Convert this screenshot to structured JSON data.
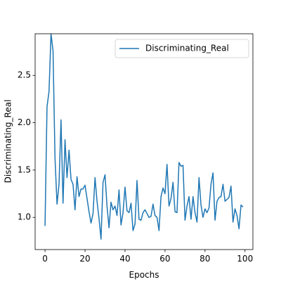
{
  "chart_data": {
    "type": "line",
    "xlabel": "Epochs",
    "ylabel": "Discriminating_Real",
    "x": [
      0,
      1,
      2,
      3,
      4,
      5,
      6,
      7,
      8,
      9,
      10,
      11,
      12,
      13,
      14,
      15,
      16,
      17,
      18,
      19,
      20,
      21,
      22,
      23,
      24,
      25,
      26,
      27,
      28,
      29,
      30,
      31,
      32,
      33,
      34,
      35,
      36,
      37,
      38,
      39,
      40,
      41,
      42,
      43,
      44,
      45,
      46,
      47,
      48,
      49,
      50,
      51,
      52,
      53,
      54,
      55,
      56,
      57,
      58,
      59,
      60,
      61,
      62,
      63,
      64,
      65,
      66,
      67,
      68,
      69,
      70,
      71,
      72,
      73,
      74,
      75,
      76,
      77,
      78,
      79,
      80,
      81,
      82,
      83,
      84,
      85,
      86,
      87,
      88,
      89,
      90,
      91,
      92,
      93,
      94,
      95,
      96,
      97,
      98,
      99
    ],
    "series": [
      {
        "name": "Discriminating_Real",
        "color": "#1f77b4",
        "values": [
          0.91,
          2.17,
          2.33,
          2.94,
          2.76,
          1.62,
          1.14,
          1.35,
          2.03,
          1.15,
          1.82,
          1.42,
          1.71,
          1.4,
          1.35,
          1.08,
          1.43,
          1.22,
          1.3,
          1.3,
          1.34,
          1.2,
          1.06,
          0.94,
          1.04,
          1.42,
          1.17,
          0.99,
          0.77,
          1.37,
          1.45,
          1.12,
          0.89,
          1.16,
          1.08,
          1.12,
          1.02,
          1.29,
          0.92,
          1.05,
          1.32,
          1.07,
          1.05,
          1.15,
          0.86,
          0.93,
          1.39,
          0.98,
          0.97,
          1.05,
          1.08,
          1.04,
          1.0,
          1.01,
          1.14,
          1.02,
          1.0,
          0.86,
          1.22,
          1.31,
          1.25,
          1.56,
          1.12,
          1.2,
          1.37,
          1.06,
          1.05,
          1.58,
          1.54,
          1.55,
          0.97,
          1.12,
          1.22,
          0.98,
          1.22,
          1.05,
          0.95,
          1.42,
          1.13,
          1.0,
          1.09,
          1.05,
          1.1,
          1.35,
          1.47,
          0.97,
          1.17,
          1.21,
          1.22,
          1.35,
          1.17,
          1.19,
          1.21,
          1.33,
          0.95,
          1.09,
          1.02,
          0.88,
          1.13,
          1.11
        ]
      }
    ],
    "xlim": [
      -4.95,
      103.95
    ],
    "ylim": [
      0.66,
      2.94
    ],
    "xticks": [
      0,
      20,
      40,
      60,
      80,
      100
    ],
    "yticks": [
      {
        "value": 1.0,
        "label": "1.0"
      },
      {
        "value": 1.5,
        "label": "1.5"
      },
      {
        "value": 2.0,
        "label": "2.0"
      },
      {
        "value": 2.5,
        "label": "2.5"
      }
    ],
    "legend": "upper right"
  }
}
